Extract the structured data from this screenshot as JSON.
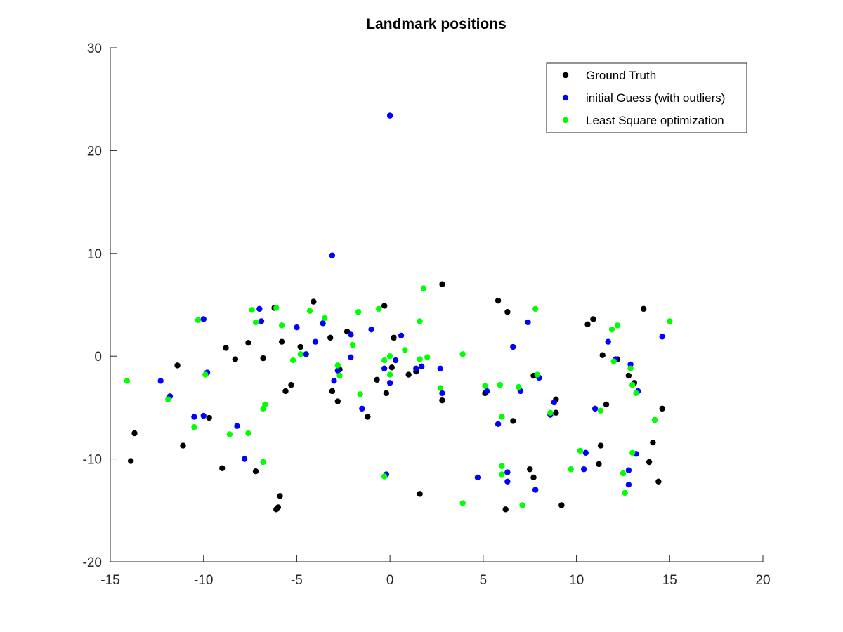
{
  "chart_data": {
    "type": "scatter",
    "title": "Landmark positions",
    "xlabel": "",
    "ylabel": "",
    "xlim": [
      -15,
      20
    ],
    "ylim": [
      -20,
      30
    ],
    "xticks": [
      -15,
      -10,
      -5,
      0,
      5,
      10,
      15,
      20
    ],
    "yticks": [
      -20,
      -10,
      0,
      10,
      20,
      30
    ],
    "grid": false,
    "legend_position": "top-right",
    "series": [
      {
        "name": "Ground Truth",
        "color": "#000000",
        "points": [
          [
            -13.9,
            -10.2
          ],
          [
            -13.7,
            -7.5
          ],
          [
            -11.4,
            -0.9
          ],
          [
            -11.1,
            -8.7
          ],
          [
            -9.7,
            -6.0
          ],
          [
            -9.0,
            -10.9
          ],
          [
            -8.8,
            0.8
          ],
          [
            -8.3,
            -0.3
          ],
          [
            -7.6,
            1.3
          ],
          [
            -7.2,
            -11.2
          ],
          [
            -6.8,
            -0.2
          ],
          [
            -6.2,
            4.7
          ],
          [
            -6.1,
            -14.9
          ],
          [
            -6.0,
            -14.7
          ],
          [
            -5.9,
            -13.6
          ],
          [
            -5.8,
            1.4
          ],
          [
            -5.6,
            -3.4
          ],
          [
            -5.3,
            -2.8
          ],
          [
            -4.8,
            0.9
          ],
          [
            -4.1,
            5.3
          ],
          [
            -3.2,
            1.8
          ],
          [
            -3.1,
            -3.4
          ],
          [
            -2.8,
            -4.4
          ],
          [
            -2.7,
            -1.3
          ],
          [
            -2.3,
            2.4
          ],
          [
            -1.2,
            -5.9
          ],
          [
            -0.7,
            -2.3
          ],
          [
            -0.3,
            4.9
          ],
          [
            -0.2,
            -3.6
          ],
          [
            0.1,
            -1.1
          ],
          [
            0.2,
            1.8
          ],
          [
            1.0,
            -1.8
          ],
          [
            1.4,
            -1.5
          ],
          [
            1.6,
            -13.4
          ],
          [
            2.8,
            -4.3
          ],
          [
            2.8,
            7.0
          ],
          [
            5.1,
            -3.6
          ],
          [
            5.8,
            5.4
          ],
          [
            6.2,
            -14.9
          ],
          [
            6.3,
            4.3
          ],
          [
            6.6,
            -6.3
          ],
          [
            7.5,
            -11.0
          ],
          [
            7.7,
            -11.8
          ],
          [
            7.7,
            -1.9
          ],
          [
            8.9,
            -4.2
          ],
          [
            8.9,
            -5.5
          ],
          [
            9.2,
            -14.5
          ],
          [
            10.6,
            3.1
          ],
          [
            10.9,
            3.6
          ],
          [
            11.2,
            -10.5
          ],
          [
            11.3,
            -8.7
          ],
          [
            11.4,
            0.1
          ],
          [
            11.6,
            -4.7
          ],
          [
            12.2,
            -0.3
          ],
          [
            12.8,
            -1.9
          ],
          [
            13.1,
            -2.6
          ],
          [
            13.6,
            4.6
          ],
          [
            13.9,
            -10.3
          ],
          [
            14.1,
            -8.4
          ],
          [
            14.4,
            -12.2
          ],
          [
            14.6,
            -5.1
          ]
        ]
      },
      {
        "name": "initial Guess (with outliers)",
        "color": "#0000ff",
        "points": [
          [
            -12.3,
            -2.4
          ],
          [
            -11.8,
            -3.9
          ],
          [
            -10.5,
            -5.9
          ],
          [
            -10.0,
            3.6
          ],
          [
            -10.0,
            -5.8
          ],
          [
            -9.8,
            -1.6
          ],
          [
            -8.2,
            -6.8
          ],
          [
            -7.8,
            -10.0
          ],
          [
            -7.0,
            4.6
          ],
          [
            -6.9,
            3.4
          ],
          [
            -5.0,
            2.8
          ],
          [
            -4.5,
            0.2
          ],
          [
            -4.0,
            1.4
          ],
          [
            -3.6,
            3.2
          ],
          [
            -3.1,
            9.8
          ],
          [
            -3.0,
            -2.4
          ],
          [
            -2.8,
            -1.4
          ],
          [
            -2.1,
            2.1
          ],
          [
            -2.1,
            -0.1
          ],
          [
            -1.5,
            -5.1
          ],
          [
            -1.0,
            2.6
          ],
          [
            -0.3,
            -1.2
          ],
          [
            -0.2,
            -11.5
          ],
          [
            0.0,
            23.4
          ],
          [
            0.0,
            -2.6
          ],
          [
            0.3,
            -0.4
          ],
          [
            0.6,
            2.0
          ],
          [
            1.4,
            -1.2
          ],
          [
            1.7,
            -1.0
          ],
          [
            2.7,
            -1.2
          ],
          [
            2.8,
            -3.6
          ],
          [
            4.7,
            -11.8
          ],
          [
            5.2,
            -3.4
          ],
          [
            5.8,
            -6.6
          ],
          [
            6.3,
            -11.3
          ],
          [
            6.3,
            -12.2
          ],
          [
            6.6,
            0.9
          ],
          [
            7.0,
            -3.4
          ],
          [
            7.4,
            3.3
          ],
          [
            7.8,
            -13.0
          ],
          [
            8.0,
            -2.1
          ],
          [
            8.6,
            -5.7
          ],
          [
            8.8,
            -4.5
          ],
          [
            10.4,
            -11.0
          ],
          [
            10.5,
            -9.4
          ],
          [
            11.0,
            -5.1
          ],
          [
            11.7,
            1.4
          ],
          [
            12.1,
            -0.3
          ],
          [
            12.8,
            -11.1
          ],
          [
            12.8,
            -12.5
          ],
          [
            12.9,
            -0.8
          ],
          [
            13.2,
            -9.5
          ],
          [
            13.3,
            -3.4
          ],
          [
            14.2,
            -6.2
          ],
          [
            14.6,
            1.9
          ]
        ]
      },
      {
        "name": "Least Square optimization",
        "color": "#00ff00",
        "points": [
          [
            -14.1,
            -2.4
          ],
          [
            -11.9,
            -4.2
          ],
          [
            -10.5,
            -6.9
          ],
          [
            -10.3,
            3.5
          ],
          [
            -9.9,
            -1.8
          ],
          [
            -8.6,
            -7.6
          ],
          [
            -7.6,
            -7.5
          ],
          [
            -7.4,
            4.5
          ],
          [
            -7.2,
            3.3
          ],
          [
            -6.8,
            -10.3
          ],
          [
            -6.8,
            -5.1
          ],
          [
            -6.7,
            -4.7
          ],
          [
            -6.1,
            4.7
          ],
          [
            -5.8,
            3.0
          ],
          [
            -5.2,
            -0.4
          ],
          [
            -4.8,
            0.2
          ],
          [
            -4.3,
            4.4
          ],
          [
            -3.5,
            3.7
          ],
          [
            -2.8,
            -0.9
          ],
          [
            -2.7,
            -1.9
          ],
          [
            -2.0,
            1.1
          ],
          [
            -1.7,
            4.3
          ],
          [
            -1.6,
            -3.7
          ],
          [
            -0.6,
            4.6
          ],
          [
            -0.3,
            -0.4
          ],
          [
            -0.3,
            -11.7
          ],
          [
            0.0,
            -1.8
          ],
          [
            0.0,
            0.0
          ],
          [
            0.8,
            0.6
          ],
          [
            1.6,
            -0.3
          ],
          [
            1.6,
            3.4
          ],
          [
            1.8,
            6.6
          ],
          [
            2.0,
            -0.1
          ],
          [
            2.7,
            -3.1
          ],
          [
            3.9,
            0.2
          ],
          [
            3.9,
            -14.3
          ],
          [
            5.1,
            -2.9
          ],
          [
            5.9,
            -2.8
          ],
          [
            6.0,
            -10.7
          ],
          [
            6.0,
            -11.5
          ],
          [
            6.0,
            -5.9
          ],
          [
            6.9,
            -3.0
          ],
          [
            7.1,
            -14.5
          ],
          [
            7.8,
            4.6
          ],
          [
            7.9,
            -1.8
          ],
          [
            8.6,
            -5.5
          ],
          [
            9.7,
            -11.0
          ],
          [
            10.2,
            -9.2
          ],
          [
            11.3,
            -5.3
          ],
          [
            11.9,
            2.6
          ],
          [
            12.0,
            -0.5
          ],
          [
            12.2,
            3.0
          ],
          [
            12.5,
            -11.4
          ],
          [
            12.6,
            -13.3
          ],
          [
            12.9,
            -1.2
          ],
          [
            13.0,
            -9.4
          ],
          [
            13.0,
            -2.8
          ],
          [
            13.2,
            -3.6
          ],
          [
            14.2,
            -6.2
          ],
          [
            15.0,
            3.4
          ]
        ]
      }
    ]
  }
}
